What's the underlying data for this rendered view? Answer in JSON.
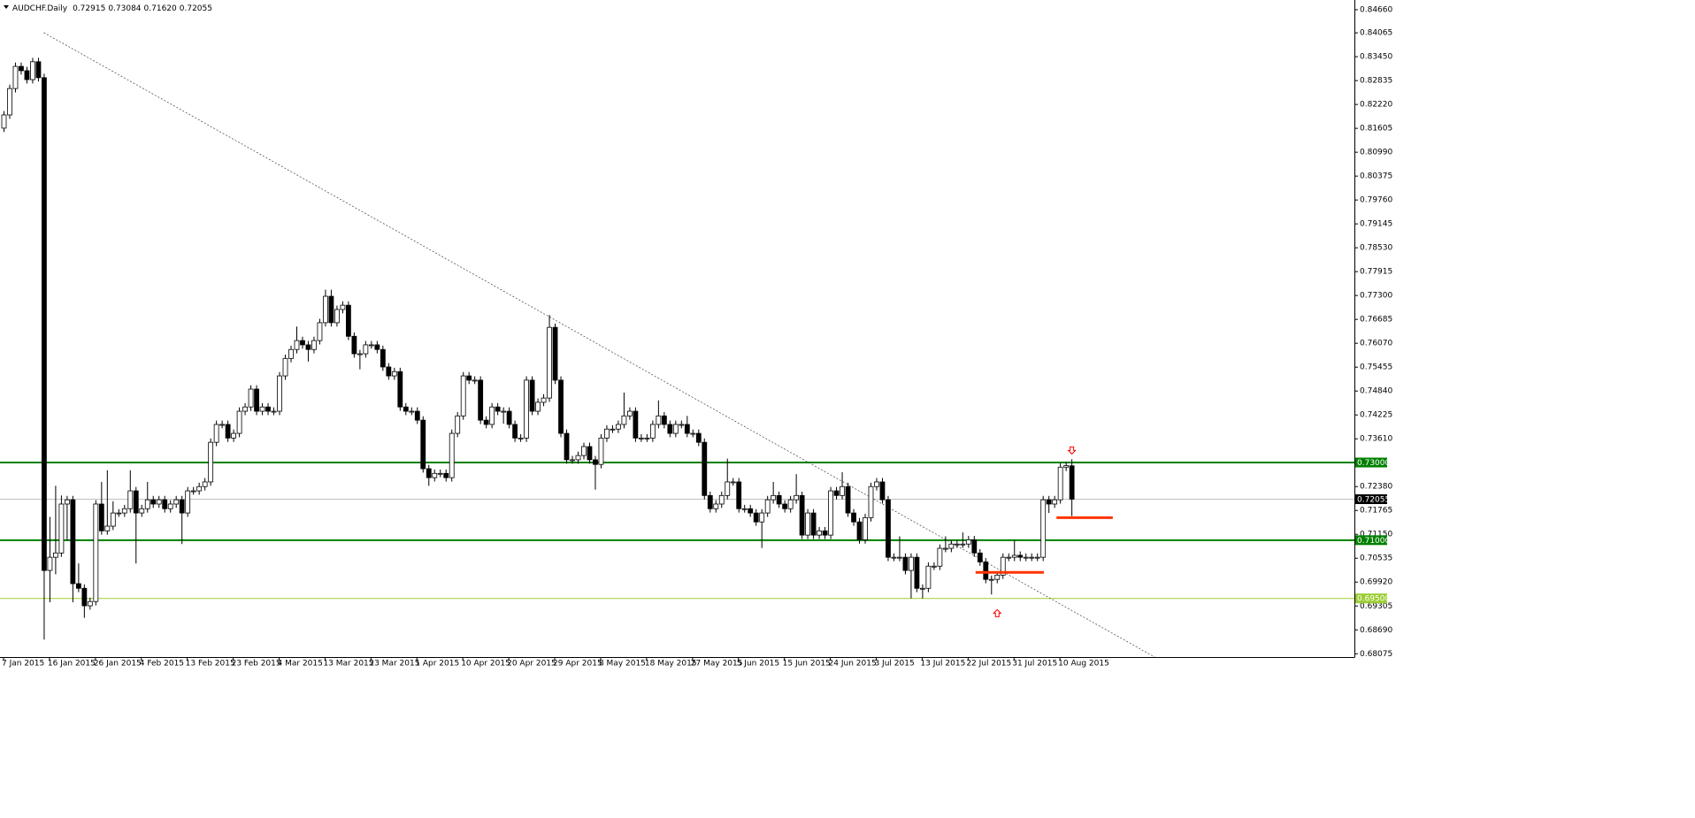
{
  "chart_data": {
    "type": "candlestick",
    "title": "AUDCHF.Daily",
    "ohlc_labels": [
      "0.72915",
      "0.73084",
      "0.71620",
      "0.72055"
    ],
    "ylim": [
      0.6799,
      0.8491
    ],
    "yticks": [
      {
        "value": 0.8466,
        "label": "0.84660"
      },
      {
        "value": 0.84065,
        "label": "0.84065"
      },
      {
        "value": 0.8345,
        "label": "0.83450"
      },
      {
        "value": 0.82835,
        "label": "0.82835"
      },
      {
        "value": 0.8222,
        "label": "0.82220"
      },
      {
        "value": 0.81605,
        "label": "0.81605"
      },
      {
        "value": 0.8099,
        "label": "0.80990"
      },
      {
        "value": 0.80375,
        "label": "0.80375"
      },
      {
        "value": 0.7976,
        "label": "0.79760"
      },
      {
        "value": 0.79145,
        "label": "0.79145"
      },
      {
        "value": 0.7853,
        "label": "0.78530"
      },
      {
        "value": 0.77915,
        "label": "0.77915"
      },
      {
        "value": 0.773,
        "label": "0.77300"
      },
      {
        "value": 0.76685,
        "label": "0.76685"
      },
      {
        "value": 0.7607,
        "label": "0.76070"
      },
      {
        "value": 0.75455,
        "label": "0.75455"
      },
      {
        "value": 0.7484,
        "label": "0.74840"
      },
      {
        "value": 0.74225,
        "label": "0.74225"
      },
      {
        "value": 0.7361,
        "label": "0.73610"
      },
      {
        "value": 0.7238,
        "label": "0.72380"
      },
      {
        "value": 0.71765,
        "label": "0.71765"
      },
      {
        "value": 0.7115,
        "label": "0.71150"
      },
      {
        "value": 0.70535,
        "label": "0.70535"
      },
      {
        "value": 0.6992,
        "label": "0.69920"
      },
      {
        "value": 0.69305,
        "label": "0.69305"
      },
      {
        "value": 0.6869,
        "label": "0.68690"
      },
      {
        "value": 0.68075,
        "label": "0.68075"
      }
    ],
    "categories": [
      "7 Jan 2015",
      null,
      null,
      null,
      null,
      null,
      null,
      null,
      "16 Jan 2015",
      null,
      null,
      null,
      null,
      null,
      null,
      null,
      "26 Jan 2015",
      null,
      null,
      null,
      null,
      null,
      null,
      null,
      "4 Feb 2015",
      null,
      null,
      null,
      null,
      null,
      null,
      null,
      "13 Feb 2015",
      null,
      null,
      null,
      null,
      null,
      null,
      null,
      "23 Feb 2015",
      null,
      null,
      null,
      null,
      null,
      null,
      null,
      "4 Mar 2015",
      null,
      null,
      null,
      null,
      null,
      null,
      null,
      "13 Mar 2015",
      null,
      null,
      null,
      null,
      null,
      null,
      null,
      "23 Mar 2015",
      null,
      null,
      null,
      null,
      null,
      null,
      null,
      "1 Apr 2015",
      null,
      null,
      null,
      null,
      null,
      null,
      null,
      "10 Apr 2015",
      null,
      null,
      null,
      null,
      null,
      null,
      null,
      "20 Apr 2015",
      null,
      null,
      null,
      null,
      null,
      null,
      null,
      "29 Apr 2015",
      null,
      null,
      null,
      null,
      null,
      null,
      null,
      "8 May 2015",
      null,
      null,
      null,
      null,
      null,
      null,
      null,
      "18 May 2015",
      null,
      null,
      null,
      null,
      null,
      null,
      null,
      "27 May 2015",
      null,
      null,
      null,
      null,
      null,
      null,
      null,
      "5 Jun 2015",
      null,
      null,
      null,
      null,
      null,
      null,
      null,
      "15 Jun 2015",
      null,
      null,
      null,
      null,
      null,
      null,
      null,
      "24 Jun 2015",
      null,
      null,
      null,
      null,
      null,
      null,
      null,
      "3 Jul 2015",
      null,
      null,
      null,
      null,
      null,
      null,
      null,
      "13 Jul 2015",
      null,
      null,
      null,
      null,
      null,
      null,
      null,
      "22 Jul 2015",
      null,
      null,
      null,
      null,
      null,
      null,
      null,
      "31 Jul 2015",
      null,
      null,
      null,
      null,
      null,
      null,
      null,
      "10 Aug 2015",
      null,
      null
    ],
    "open": [
      0.8161,
      0.8195,
      0.8263,
      0.832,
      0.8309,
      0.8286,
      0.8332,
      0.8291,
      0.7022,
      0.7056,
      0.7067,
      0.7193,
      0.7204,
      0.6988,
      0.6976,
      0.6931,
      0.6942,
      0.7193,
      0.7124,
      0.7136,
      0.717,
      0.717,
      0.7181,
      0.7227,
      0.717,
      0.7181,
      0.7204,
      0.7193,
      0.7204,
      0.7181,
      0.7193,
      0.7204,
      0.717,
      0.7227,
      0.7227,
      0.7238,
      0.725,
      0.7352,
      0.7398,
      0.7398,
      0.7363,
      0.7375,
      0.7432,
      0.7443,
      0.7489,
      0.7432,
      0.7443,
      0.7432,
      0.7432,
      0.7523,
      0.7568,
      0.7591,
      0.7614,
      0.7603,
      0.7591,
      0.7614,
      0.766,
      0.7728,
      0.766,
      0.7694,
      0.7705,
      0.7625,
      0.758,
      0.758,
      0.7603,
      0.7603,
      0.7591,
      0.7546,
      0.7523,
      0.7534,
      0.7443,
      0.7432,
      0.7432,
      0.7409,
      0.7284,
      0.7261,
      0.7272,
      0.7272,
      0.7261,
      0.7375,
      0.742,
      0.7523,
      0.7512,
      0.7512,
      0.7409,
      0.7398,
      0.7443,
      0.7432,
      0.7432,
      0.7398,
      0.7363,
      0.7363,
      0.7512,
      0.7432,
      0.7455,
      0.7466,
      0.7648,
      0.7512,
      0.7375,
      0.7307,
      0.7307,
      0.7318,
      0.7341,
      0.7307,
      0.7295,
      0.7363,
      0.7386,
      0.7386,
      0.7398,
      0.742,
      0.7432,
      0.7363,
      0.7363,
      0.7363,
      0.7398,
      0.742,
      0.7398,
      0.7375,
      0.7398,
      0.7398,
      0.7375,
      0.7375,
      0.7352,
      0.7215,
      0.7181,
      0.7193,
      0.7215,
      0.725,
      0.725,
      0.7181,
      0.7181,
      0.717,
      0.7147,
      0.717,
      0.7204,
      0.7215,
      0.7193,
      0.7181,
      0.7204,
      0.7215,
      0.7113,
      0.717,
      0.7113,
      0.7124,
      0.7113,
      0.7227,
      0.7215,
      0.7238,
      0.717,
      0.7147,
      0.7101,
      0.7158,
      0.7238,
      0.725,
      0.7204,
      0.7056,
      0.7056,
      0.7056,
      0.7022,
      0.7056,
      0.6976,
      0.6976,
      0.7033,
      0.7033,
      0.7079,
      0.7079,
      0.709,
      0.709,
      0.709,
      0.7101,
      0.7067,
      0.7044,
      0.6999,
      0.6999,
      0.701,
      0.7056,
      0.7056,
      0.7061,
      0.7056,
      0.7056,
      0.7056,
      0.7056,
      0.7204,
      0.7193,
      0.7204,
      0.7288,
      0.72915
    ],
    "high": [
      0.8205,
      0.8273,
      0.833,
      0.833,
      0.8319,
      0.8342,
      0.8342,
      0.8301,
      0.716,
      0.724,
      0.7215,
      0.7214,
      0.7214,
      0.704,
      0.6986,
      0.6952,
      0.7203,
      0.725,
      0.728,
      0.72,
      0.718,
      0.7191,
      0.728,
      0.7237,
      0.7191,
      0.725,
      0.7214,
      0.7214,
      0.7214,
      0.7203,
      0.7214,
      0.7214,
      0.7237,
      0.7237,
      0.7248,
      0.726,
      0.7362,
      0.7408,
      0.7408,
      0.7408,
      0.7385,
      0.7442,
      0.7453,
      0.7499,
      0.7499,
      0.7453,
      0.7453,
      0.7442,
      0.7533,
      0.7578,
      0.7601,
      0.765,
      0.7624,
      0.7613,
      0.7624,
      0.767,
      0.7745,
      0.7745,
      0.7704,
      0.7715,
      0.7715,
      0.7635,
      0.759,
      0.7613,
      0.7613,
      0.7613,
      0.7601,
      0.7556,
      0.7544,
      0.7544,
      0.7453,
      0.7442,
      0.7442,
      0.7419,
      0.7294,
      0.7282,
      0.7282,
      0.7282,
      0.7385,
      0.743,
      0.7533,
      0.7533,
      0.7522,
      0.7522,
      0.7419,
      0.7453,
      0.7453,
      0.7442,
      0.7442,
      0.7408,
      0.7373,
      0.7522,
      0.7522,
      0.7465,
      0.7476,
      0.768,
      0.7658,
      0.7522,
      0.7385,
      0.7317,
      0.7328,
      0.7351,
      0.7351,
      0.7317,
      0.7373,
      0.7396,
      0.7396,
      0.7408,
      0.748,
      0.7442,
      0.7442,
      0.7373,
      0.7373,
      0.7408,
      0.746,
      0.743,
      0.7408,
      0.7408,
      0.7408,
      0.742,
      0.7385,
      0.7385,
      0.7362,
      0.7225,
      0.7203,
      0.7225,
      0.731,
      0.726,
      0.726,
      0.7191,
      0.7191,
      0.718,
      0.718,
      0.7214,
      0.725,
      0.7225,
      0.7203,
      0.7214,
      0.727,
      0.7225,
      0.718,
      0.718,
      0.7134,
      0.7134,
      0.7237,
      0.7237,
      0.7275,
      0.7248,
      0.718,
      0.7157,
      0.7168,
      0.7248,
      0.726,
      0.726,
      0.7214,
      0.7066,
      0.711,
      0.7066,
      0.7066,
      0.7066,
      0.6986,
      0.7043,
      0.7043,
      0.7089,
      0.711,
      0.71,
      0.71,
      0.712,
      0.7111,
      0.7111,
      0.7077,
      0.7054,
      0.7009,
      0.702,
      0.7066,
      0.7066,
      0.71,
      0.7071,
      0.7066,
      0.7066,
      0.7066,
      0.7214,
      0.7214,
      0.7214,
      0.7298,
      0.7302,
      0.73084
    ],
    "low": [
      0.8151,
      0.8185,
      0.8253,
      0.8299,
      0.8276,
      0.8276,
      0.8281,
      0.6844,
      0.694,
      0.7012,
      0.7057,
      0.71,
      0.694,
      0.6966,
      0.69,
      0.6921,
      0.6932,
      0.7114,
      0.7114,
      0.7126,
      0.716,
      0.716,
      0.7171,
      0.704,
      0.716,
      0.7171,
      0.7183,
      0.7183,
      0.7171,
      0.7171,
      0.7183,
      0.709,
      0.716,
      0.7217,
      0.7217,
      0.7228,
      0.724,
      0.7342,
      0.7388,
      0.7353,
      0.7353,
      0.7365,
      0.7422,
      0.7433,
      0.7422,
      0.7422,
      0.7422,
      0.7422,
      0.7422,
      0.7513,
      0.7558,
      0.7581,
      0.7593,
      0.756,
      0.7581,
      0.7604,
      0.765,
      0.765,
      0.765,
      0.7684,
      0.7615,
      0.757,
      0.754,
      0.757,
      0.7593,
      0.7581,
      0.7536,
      0.7513,
      0.7513,
      0.7433,
      0.7422,
      0.7422,
      0.7399,
      0.7274,
      0.724,
      0.7251,
      0.7262,
      0.7251,
      0.7251,
      0.7365,
      0.741,
      0.7502,
      0.7502,
      0.7399,
      0.7388,
      0.7388,
      0.7422,
      0.74,
      0.7388,
      0.7353,
      0.7353,
      0.7353,
      0.7422,
      0.7422,
      0.7445,
      0.7456,
      0.7502,
      0.7365,
      0.7297,
      0.7297,
      0.7297,
      0.7308,
      0.7297,
      0.723,
      0.7285,
      0.7353,
      0.7376,
      0.7376,
      0.7388,
      0.741,
      0.7353,
      0.7353,
      0.7353,
      0.7353,
      0.7388,
      0.7388,
      0.7365,
      0.7365,
      0.7388,
      0.7365,
      0.7365,
      0.7342,
      0.7205,
      0.7171,
      0.7171,
      0.7183,
      0.7205,
      0.724,
      0.7171,
      0.7171,
      0.716,
      0.7137,
      0.708,
      0.716,
      0.7194,
      0.7183,
      0.7171,
      0.7171,
      0.7194,
      0.7103,
      0.7103,
      0.7103,
      0.7103,
      0.7103,
      0.7103,
      0.7205,
      0.7205,
      0.716,
      0.7137,
      0.7091,
      0.7091,
      0.7148,
      0.7228,
      0.7194,
      0.7046,
      0.7046,
      0.7046,
      0.7012,
      0.695,
      0.6966,
      0.695,
      0.6966,
      0.7023,
      0.7023,
      0.7069,
      0.7069,
      0.708,
      0.708,
      0.708,
      0.7057,
      0.7034,
      0.6989,
      0.696,
      0.6989,
      0.7,
      0.7046,
      0.7046,
      0.7046,
      0.7046,
      0.7046,
      0.7046,
      0.7046,
      0.717,
      0.7183,
      0.7194,
      0.7278,
      0.7162
    ],
    "close": [
      0.8195,
      0.8263,
      0.832,
      0.8309,
      0.8286,
      0.8332,
      0.8291,
      0.7022,
      0.7056,
      0.7067,
      0.7193,
      0.7204,
      0.6988,
      0.6976,
      0.6931,
      0.6942,
      0.7193,
      0.7124,
      0.7136,
      0.717,
      0.717,
      0.7181,
      0.7227,
      0.717,
      0.7181,
      0.7204,
      0.7193,
      0.7204,
      0.7181,
      0.7193,
      0.7204,
      0.717,
      0.7227,
      0.7227,
      0.7238,
      0.725,
      0.7352,
      0.7398,
      0.7398,
      0.7363,
      0.7375,
      0.7432,
      0.7443,
      0.7489,
      0.7432,
      0.7443,
      0.7432,
      0.7432,
      0.7523,
      0.7568,
      0.7591,
      0.7614,
      0.7603,
      0.7591,
      0.7614,
      0.766,
      0.7728,
      0.766,
      0.7694,
      0.7705,
      0.7625,
      0.758,
      0.758,
      0.7603,
      0.7603,
      0.7591,
      0.7546,
      0.7523,
      0.7534,
      0.7443,
      0.7432,
      0.7432,
      0.7409,
      0.7284,
      0.7261,
      0.7272,
      0.7272,
      0.7261,
      0.7375,
      0.742,
      0.7523,
      0.7512,
      0.7512,
      0.7409,
      0.7398,
      0.7443,
      0.7432,
      0.7432,
      0.7398,
      0.7363,
      0.7363,
      0.7512,
      0.7432,
      0.7455,
      0.7466,
      0.7648,
      0.7512,
      0.7375,
      0.7307,
      0.7307,
      0.7318,
      0.7341,
      0.7307,
      0.7295,
      0.7363,
      0.7386,
      0.7386,
      0.7398,
      0.742,
      0.7432,
      0.7363,
      0.7363,
      0.7363,
      0.7398,
      0.742,
      0.7398,
      0.7375,
      0.7398,
      0.7398,
      0.7375,
      0.7375,
      0.7352,
      0.7215,
      0.7181,
      0.7193,
      0.7215,
      0.725,
      0.725,
      0.7181,
      0.7181,
      0.717,
      0.7147,
      0.717,
      0.7204,
      0.7215,
      0.7193,
      0.7181,
      0.7204,
      0.7215,
      0.7113,
      0.717,
      0.7113,
      0.7124,
      0.7113,
      0.7227,
      0.7215,
      0.7238,
      0.717,
      0.7147,
      0.7101,
      0.7158,
      0.7238,
      0.725,
      0.7204,
      0.7056,
      0.7056,
      0.7056,
      0.7022,
      0.7056,
      0.6976,
      0.6976,
      0.7033,
      0.7033,
      0.7079,
      0.7079,
      0.709,
      0.709,
      0.709,
      0.7101,
      0.7067,
      0.7044,
      0.6999,
      0.6999,
      0.701,
      0.7056,
      0.7056,
      0.7061,
      0.7056,
      0.7056,
      0.7056,
      0.7056,
      0.7204,
      0.7193,
      0.7204,
      0.7288,
      0.7292,
      0.72055
    ],
    "hlines": [
      {
        "value": 0.73,
        "label": "0.73000",
        "color": "#008000",
        "tag": "#008000",
        "width": 2
      },
      {
        "value": 0.71,
        "label": "0.71000",
        "color": "#008000",
        "tag": "#008000",
        "width": 2
      },
      {
        "value": 0.695,
        "label": "0.69500",
        "color": "#9acd32",
        "tag": "#9acd32",
        "width": 1
      },
      {
        "value": 0.72055,
        "label": "0.72055",
        "color": "#c0c0c0",
        "tag": "#000000",
        "width": 1
      }
    ],
    "trendline": {
      "x": [
        7,
        200.5
      ],
      "values": [
        0.8407,
        0.6799
      ],
      "color": "#555555"
    },
    "segments": [
      {
        "x": [
          169.3,
          181.2
        ],
        "value": 0.7017,
        "color": "#ff3300"
      },
      {
        "x": [
          183.4,
          193.2
        ],
        "value": 0.7158,
        "color": "#ff3300"
      }
    ],
    "arrows": [
      {
        "x": 186,
        "value": 0.7331,
        "direction": "down",
        "color": "#ff0000"
      },
      {
        "x": 173,
        "value": 0.6912,
        "direction": "up",
        "color": "#ff0000"
      }
    ]
  }
}
